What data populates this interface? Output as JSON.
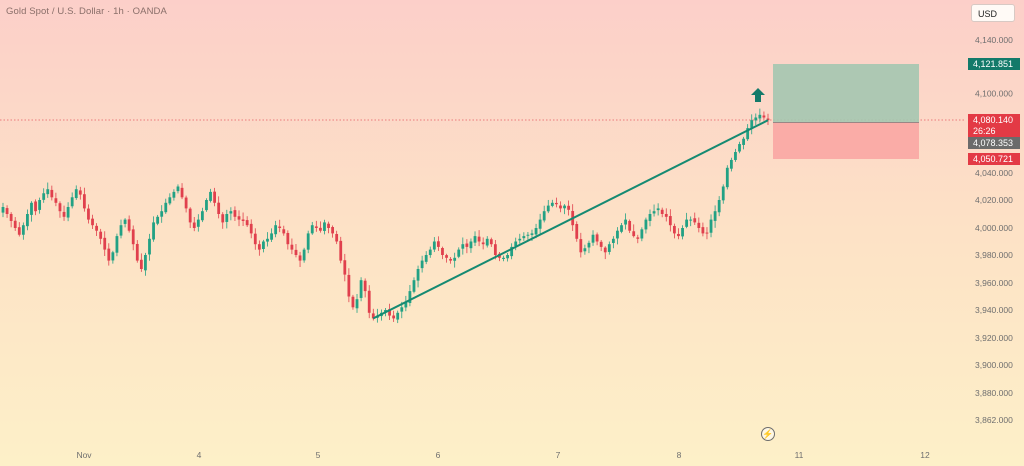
{
  "header": {
    "title": "Gold Spot / U.S. Dollar · 1h · OANDA",
    "currency_button": "USD"
  },
  "price_tags": {
    "target": {
      "label": "4,121.851",
      "color": "#137a6a"
    },
    "current": {
      "price": "4,080.140",
      "countdown": "26:26",
      "color": "#e33a45"
    },
    "entry": {
      "label": "4,078.353",
      "color": "#6b6b6b"
    },
    "stop": {
      "label": "4,050.721",
      "color": "#e33a45"
    }
  },
  "colors": {
    "up": "#22a184",
    "down": "#e0404d",
    "trendline": "#158a72",
    "profit_zone": "#a4c6b0",
    "loss_zone": "#f9a6a3"
  },
  "chart_data": {
    "type": "candlestick",
    "symbol": "Gold Spot / U.S. Dollar",
    "interval": "1h",
    "source": "OANDA",
    "y_ticks": [
      "4,140.000",
      "4,100.000",
      "4,080.000",
      "4,040.000",
      "4,020.000",
      "4,000.000",
      "3,980.000",
      "3,960.000",
      "3,940.000",
      "3,920.000",
      "3,900.000",
      "3,880.000",
      "3,862.000"
    ],
    "y_tick_values": [
      4140,
      4100,
      4080,
      4040,
      4020,
      4000,
      3980,
      3960,
      3940,
      3920,
      3900,
      3880,
      3862
    ],
    "x_labels": [
      "Nov",
      "4",
      "5",
      "6",
      "7",
      "8",
      "11",
      "12"
    ],
    "series_close": [
      4015,
      4010,
      4005,
      4000,
      3995,
      4002,
      4010,
      4018,
      4012,
      4020,
      4025,
      4028,
      4022,
      4018,
      4012,
      4008,
      4015,
      4022,
      4028,
      4024,
      4014,
      4006,
      4002,
      3998,
      3992,
      3984,
      3976,
      3982,
      3994,
      4002,
      4006,
      3998,
      3988,
      3976,
      3970,
      3980,
      3992,
      4004,
      4008,
      4012,
      4018,
      4022,
      4026,
      4030,
      4022,
      4014,
      4004,
      4000,
      4006,
      4012,
      4020,
      4026,
      4018,
      4010,
      4004,
      4010,
      4012,
      4008,
      4006,
      4005,
      4002,
      3996,
      3988,
      3984,
      3990,
      3992,
      3996,
      4002,
      4000,
      3996,
      3988,
      3984,
      3980,
      3976,
      3984,
      3996,
      4002,
      4000,
      3998,
      4004,
      4000,
      3996,
      3990,
      3976,
      3966,
      3950,
      3942,
      3948,
      3962,
      3954,
      3938,
      3934,
      3936,
      3938,
      3940,
      3936,
      3934,
      3938,
      3942,
      3946,
      3954,
      3962,
      3970,
      3976,
      3980,
      3984,
      3990,
      3986,
      3980,
      3978,
      3976,
      3978,
      3984,
      3988,
      3986,
      3990,
      3994,
      3990,
      3988,
      3992,
      3988,
      3980,
      3978,
      3978,
      3980,
      3986,
      3990,
      3992,
      3994,
      3995,
      3996,
      4000,
      4006,
      4012,
      4016,
      4018,
      4017,
      4014,
      4016,
      4013,
      4002,
      3992,
      3982,
      3985,
      3989,
      3995,
      3990,
      3986,
      3982,
      3988,
      3992,
      3998,
      4002,
      4006,
      3998,
      3994,
      3992,
      3999,
      4006,
      4010,
      4012,
      4014,
      4010,
      4008,
      4002,
      3996,
      3994,
      4000,
      4006,
      4006,
      4004,
      4000,
      3996,
      3996,
      4006,
      4012,
      4020,
      4030,
      4044,
      4050,
      4056,
      4062,
      4066,
      4074,
      4080,
      4082,
      4084,
      4082,
      4080
    ],
    "trendline": {
      "start_close": 3934,
      "end_close": 4080
    },
    "position": {
      "type": "long",
      "target": 4121.851,
      "entry": 4078.353,
      "stop": 4050.721,
      "current": 4080.14
    }
  }
}
